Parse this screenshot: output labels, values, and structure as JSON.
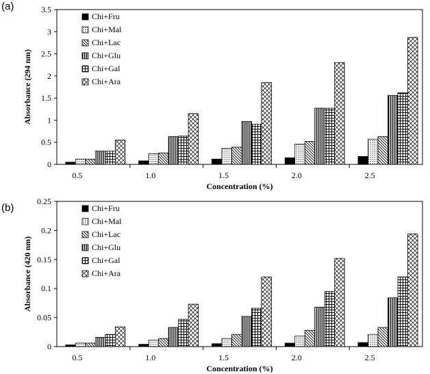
{
  "chart_data": [
    {
      "type": "bar",
      "panel_label": "(a)",
      "title": "",
      "xlabel": "Concentration (%)",
      "ylabel": "Absorbance (294 nm)",
      "categories": [
        "0.5",
        "1.0",
        "1.5",
        "2.0",
        "2.5"
      ],
      "ylim": [
        0,
        3.5
      ],
      "yticks": [
        "0",
        "0.5",
        "1",
        "1.5",
        "2",
        "2.5",
        "3",
        "3.5"
      ],
      "legend_position": "top-left",
      "series": [
        {
          "name": "Chi+Fru",
          "values": [
            0.05,
            0.08,
            0.12,
            0.15,
            0.18
          ]
        },
        {
          "name": "Chi+Mal",
          "values": [
            0.12,
            0.24,
            0.36,
            0.46,
            0.57
          ]
        },
        {
          "name": "Chi+Lac",
          "values": [
            0.12,
            0.26,
            0.39,
            0.52,
            0.63
          ]
        },
        {
          "name": "Chi+Glu",
          "values": [
            0.3,
            0.63,
            0.97,
            1.27,
            1.56
          ]
        },
        {
          "name": "Chi+Gal",
          "values": [
            0.3,
            0.64,
            0.91,
            1.27,
            1.62
          ]
        },
        {
          "name": "Chi+Ara",
          "values": [
            0.55,
            1.15,
            1.85,
            2.3,
            2.87
          ]
        }
      ]
    },
    {
      "type": "bar",
      "panel_label": "(b)",
      "title": "",
      "xlabel": "Concentration (%)",
      "ylabel": "Absorbance (420 nm)",
      "categories": [
        "0.5",
        "1.0",
        "1.5",
        "2.0",
        "2.5"
      ],
      "ylim": [
        0,
        0.25
      ],
      "yticks": [
        "0",
        "0.05",
        "0.1",
        "0.15",
        "0.2",
        "0.25"
      ],
      "legend_position": "top-left",
      "series": [
        {
          "name": "Chi+Fru",
          "values": [
            0.003,
            0.004,
            0.005,
            0.006,
            0.007
          ]
        },
        {
          "name": "Chi+Mal",
          "values": [
            0.006,
            0.011,
            0.014,
            0.018,
            0.021
          ]
        },
        {
          "name": "Chi+Lac",
          "values": [
            0.006,
            0.014,
            0.021,
            0.028,
            0.033
          ]
        },
        {
          "name": "Chi+Glu",
          "values": [
            0.016,
            0.033,
            0.052,
            0.068,
            0.084
          ]
        },
        {
          "name": "Chi+Gal",
          "values": [
            0.021,
            0.047,
            0.066,
            0.095,
            0.12
          ]
        },
        {
          "name": "Chi+Ara",
          "values": [
            0.034,
            0.073,
            0.12,
            0.152,
            0.194
          ]
        }
      ]
    }
  ]
}
